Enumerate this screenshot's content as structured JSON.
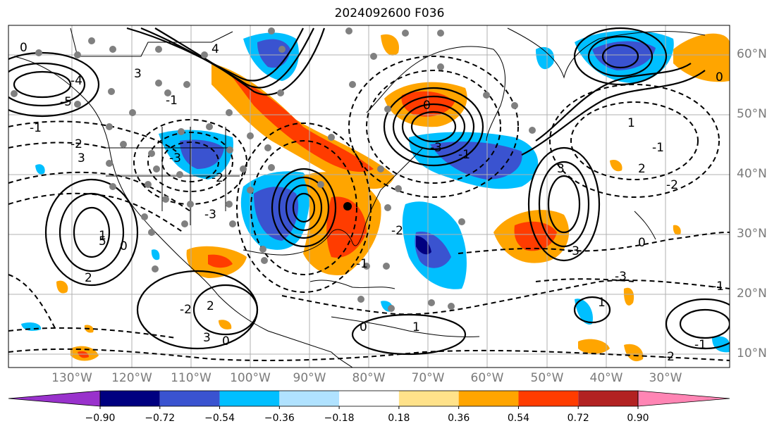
{
  "title": "2024092600 F036",
  "map": {
    "lon_labels": [
      "130°W",
      "120°W",
      "110°W",
      "100°W",
      "90°W",
      "80°W",
      "70°W",
      "60°W",
      "50°W",
      "40°W",
      "30°W"
    ],
    "lat_labels": [
      "60°N",
      "50°N",
      "40°N",
      "30°N",
      "20°N",
      "10°N"
    ],
    "contour_labels": [
      "0",
      "-1",
      "-2",
      "-4",
      "-5",
      "-3",
      "-2",
      "-1",
      "0",
      "1",
      "2",
      "3",
      "5",
      "4",
      "3",
      "-3",
      "-2",
      "-1",
      "0",
      "1",
      "3",
      "2",
      "-2",
      "-3",
      "-1",
      "0",
      "1",
      "2",
      "-2",
      "-1",
      "0",
      "-3",
      "-1",
      "0",
      "1",
      "3",
      "-3",
      "-2",
      "-1",
      "0"
    ]
  },
  "colorbar": {
    "ticks": [
      "−0.90",
      "−0.72",
      "−0.54",
      "−0.36",
      "−0.18",
      "0.18",
      "0.36",
      "0.54",
      "0.72",
      "0.90"
    ],
    "colors": [
      "#9932cc",
      "#000080",
      "#3a53d0",
      "#00bfff",
      "#b0e2ff",
      "#ffffff",
      "#ffe28a",
      "#ffa500",
      "#ff3c00",
      "#b22222",
      "#ff85b4"
    ]
  }
}
